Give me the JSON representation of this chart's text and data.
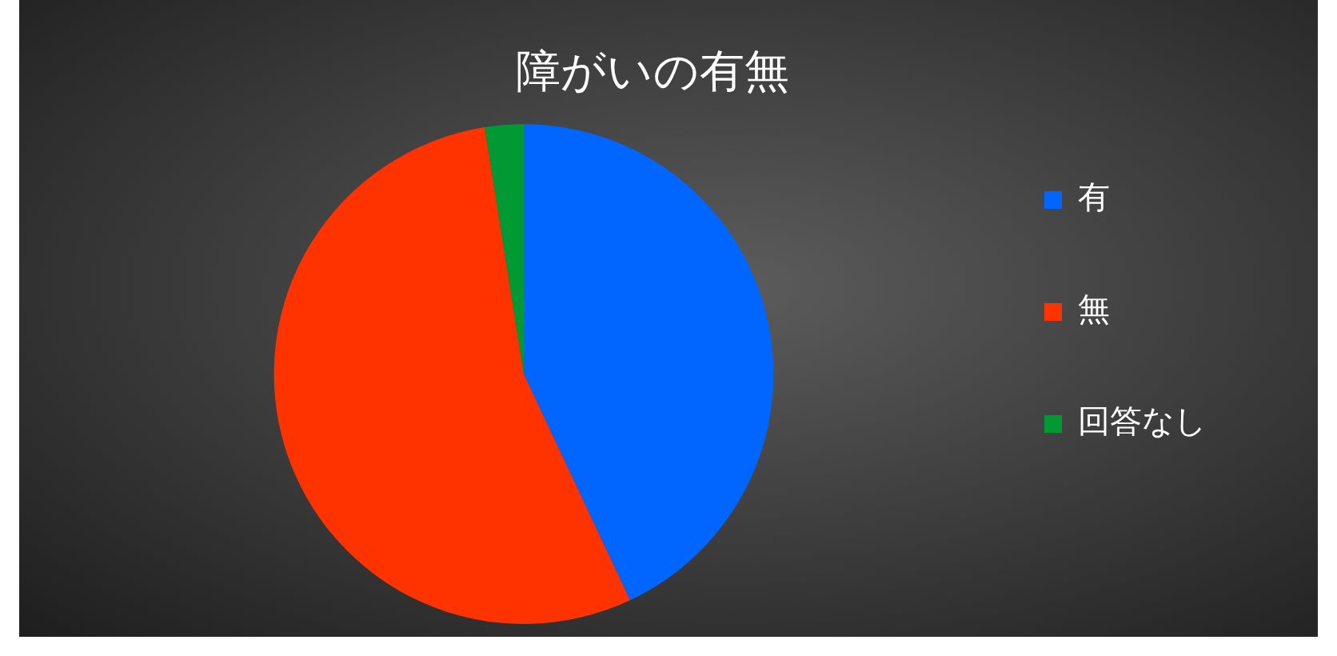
{
  "chart_data": {
    "type": "pie",
    "title": "障がいの有無",
    "categories": [
      "有",
      "無",
      "回答なし"
    ],
    "values": [
      43,
      54.5,
      2.5
    ],
    "colors": [
      "#0066ff",
      "#ff3300",
      "#009933"
    ],
    "legend": "right"
  }
}
